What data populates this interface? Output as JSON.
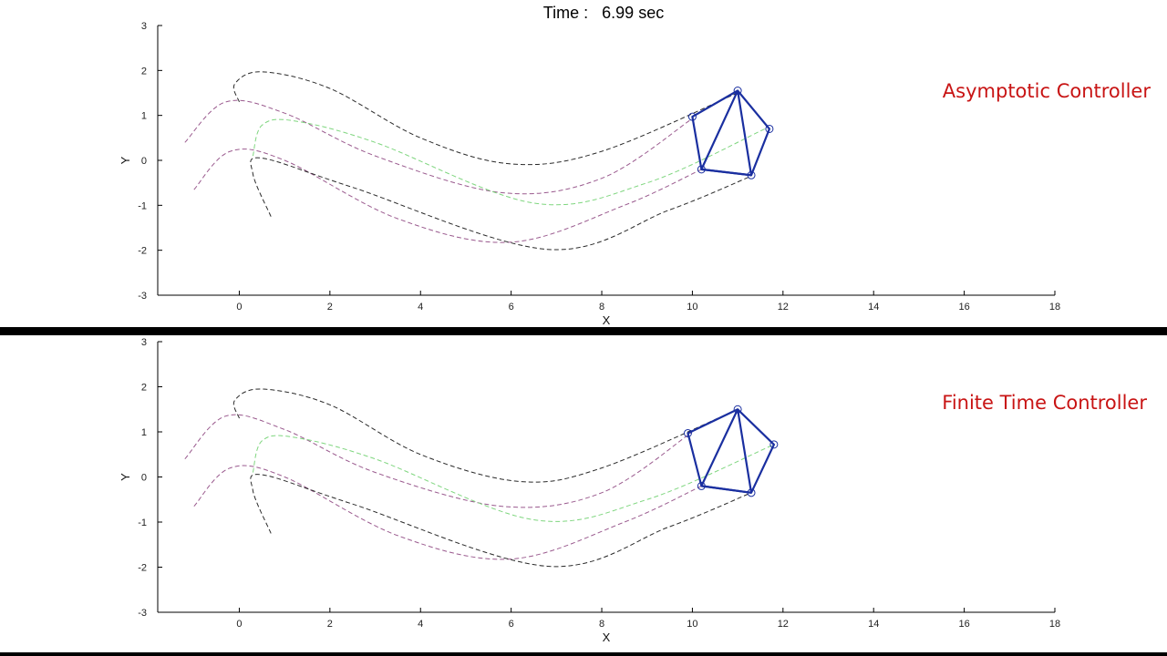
{
  "time": {
    "prefix": "Time :",
    "value": "6.99 sec"
  },
  "colors": {
    "axes": "#000000",
    "formation": "#1a2fa0",
    "label": "#c81414",
    "divider": "#000000",
    "trajectories": [
      "#2a2a2a",
      "#9a5a8e",
      "#7fd67f",
      "#9a5a8e",
      "#2a2a2a"
    ]
  },
  "chart_data": [
    {
      "type": "line",
      "panel_label": "Asymptotic Controller",
      "xlabel": "X",
      "ylabel": "Y",
      "xlim": [
        -1.8,
        18
      ],
      "ylim": [
        -3,
        3
      ],
      "xticks": [
        "0",
        "2",
        "4",
        "6",
        "8",
        "10",
        "12",
        "14",
        "16",
        "18"
      ],
      "yticks": [
        "3",
        "2",
        "1",
        "0",
        "-1",
        "-2",
        "-3"
      ],
      "grid": false,
      "series": [
        {
          "values": [
            [
              0.0,
              1.3
            ],
            [
              -0.1,
              1.7
            ],
            [
              0.5,
              1.97
            ],
            [
              2.0,
              1.6
            ],
            [
              4.0,
              0.5
            ],
            [
              6.0,
              -0.08
            ],
            [
              8.0,
              0.2
            ],
            [
              11.0,
              1.5
            ]
          ]
        },
        {
          "values": [
            [
              -1.2,
              0.4
            ],
            [
              -0.3,
              1.3
            ],
            [
              1.0,
              1.05
            ],
            [
              3.0,
              0.1
            ],
            [
              5.8,
              -0.72
            ],
            [
              8.0,
              -0.4
            ],
            [
              10.0,
              0.93
            ]
          ]
        },
        {
          "values": [
            [
              0.3,
              0.1
            ],
            [
              0.5,
              0.78
            ],
            [
              1.2,
              0.88
            ],
            [
              3.0,
              0.4
            ],
            [
              6.5,
              -0.95
            ],
            [
              9.0,
              -0.5
            ],
            [
              11.6,
              0.7
            ]
          ]
        },
        {
          "values": [
            [
              -1.0,
              -0.65
            ],
            [
              -0.2,
              0.2
            ],
            [
              1.0,
              0.0
            ],
            [
              3.5,
              -1.3
            ],
            [
              6.0,
              -1.82
            ],
            [
              8.5,
              -1.0
            ],
            [
              10.2,
              -0.2
            ]
          ]
        },
        {
          "values": [
            [
              0.7,
              -1.25
            ],
            [
              0.3,
              -0.3
            ],
            [
              0.5,
              0.05
            ],
            [
              2.5,
              -0.6
            ],
            [
              6.8,
              -1.98
            ],
            [
              9.5,
              -1.1
            ],
            [
              11.3,
              -0.35
            ]
          ]
        }
      ],
      "formation": {
        "vertices": [
          [
            11.0,
            1.55
          ],
          [
            11.7,
            0.7
          ],
          [
            11.3,
            -0.33
          ],
          [
            10.2,
            -0.2
          ],
          [
            10.0,
            0.97
          ]
        ]
      }
    },
    {
      "type": "line",
      "panel_label": "Finite Time Controller",
      "xlabel": "X",
      "ylabel": "Y",
      "xlim": [
        -1.8,
        18
      ],
      "ylim": [
        -3,
        3
      ],
      "xticks": [
        "0",
        "2",
        "4",
        "6",
        "8",
        "10",
        "12",
        "14",
        "16",
        "18"
      ],
      "yticks": [
        "3",
        "2",
        "1",
        "0",
        "-1",
        "-2",
        "-3"
      ],
      "grid": false,
      "series": [
        {
          "values": [
            [
              0.0,
              1.3
            ],
            [
              -0.1,
              1.7
            ],
            [
              0.5,
              1.95
            ],
            [
              2.0,
              1.6
            ],
            [
              4.0,
              0.5
            ],
            [
              6.2,
              -0.1
            ],
            [
              8.0,
              0.2
            ],
            [
              11.0,
              1.5
            ]
          ]
        },
        {
          "values": [
            [
              -1.2,
              0.4
            ],
            [
              -0.3,
              1.35
            ],
            [
              1.0,
              1.05
            ],
            [
              3.0,
              0.1
            ],
            [
              5.8,
              -0.65
            ],
            [
              8.0,
              -0.35
            ],
            [
              10.0,
              1.0
            ]
          ]
        },
        {
          "values": [
            [
              0.3,
              0.1
            ],
            [
              0.5,
              0.8
            ],
            [
              1.2,
              0.88
            ],
            [
              3.0,
              0.4
            ],
            [
              6.5,
              -0.95
            ],
            [
              9.0,
              -0.5
            ],
            [
              11.8,
              0.72
            ]
          ]
        },
        {
          "values": [
            [
              -1.0,
              -0.65
            ],
            [
              -0.2,
              0.2
            ],
            [
              1.0,
              0.0
            ],
            [
              3.5,
              -1.3
            ],
            [
              6.0,
              -1.82
            ],
            [
              8.5,
              -1.0
            ],
            [
              10.2,
              -0.2
            ]
          ]
        },
        {
          "values": [
            [
              0.7,
              -1.25
            ],
            [
              0.3,
              -0.3
            ],
            [
              0.5,
              0.05
            ],
            [
              2.5,
              -0.6
            ],
            [
              6.8,
              -1.98
            ],
            [
              9.5,
              -1.1
            ],
            [
              11.3,
              -0.35
            ]
          ]
        }
      ],
      "formation": {
        "vertices": [
          [
            11.0,
            1.5
          ],
          [
            11.8,
            0.72
          ],
          [
            11.3,
            -0.35
          ],
          [
            10.2,
            -0.2
          ],
          [
            9.9,
            0.97
          ]
        ]
      }
    }
  ]
}
